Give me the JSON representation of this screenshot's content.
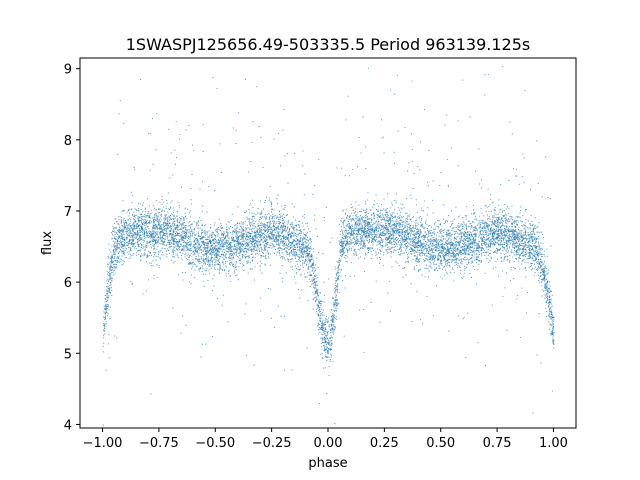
{
  "chart_data": {
    "type": "scatter",
    "title": "1SWASPJ125656.49-503335.5 Period 963139.125s",
    "xlabel": "phase",
    "ylabel": "flux",
    "xlim": [
      -1.1,
      1.1
    ],
    "ylim": [
      3.95,
      9.15
    ],
    "x_ticks": [
      -1.0,
      -0.75,
      -0.5,
      -0.25,
      0.0,
      0.25,
      0.5,
      0.75,
      1.0
    ],
    "x_tick_labels": [
      "−1.00",
      "−0.75",
      "−0.50",
      "−0.25",
      "0.00",
      "0.25",
      "0.50",
      "0.75",
      "1.00"
    ],
    "y_ticks": [
      4,
      5,
      6,
      7,
      8,
      9
    ],
    "y_tick_labels": [
      "4",
      "5",
      "6",
      "7",
      "8",
      "9"
    ],
    "grid": false,
    "legend": "none",
    "marker_color": "#1f77b4",
    "series": [
      {
        "x": [
          -1.0,
          -0.98,
          -0.95,
          -0.92,
          -0.88,
          -0.85,
          -0.8,
          -0.75,
          -0.7,
          -0.65,
          -0.6,
          -0.55,
          -0.5,
          -0.45,
          -0.4,
          -0.35,
          -0.3,
          -0.25,
          -0.2,
          -0.15,
          -0.1,
          -0.07,
          -0.05,
          -0.03,
          -0.01,
          0.0,
          0.01,
          0.03,
          0.05,
          0.07,
          0.1,
          0.15,
          0.2,
          0.25,
          0.3,
          0.35,
          0.4,
          0.45,
          0.5,
          0.55,
          0.6,
          0.65,
          0.7,
          0.75,
          0.8,
          0.85,
          0.88,
          0.92,
          0.95,
          0.98,
          1.0
        ],
        "y": [
          5.2,
          5.9,
          6.5,
          6.65,
          6.7,
          6.7,
          6.7,
          6.75,
          6.7,
          6.65,
          6.55,
          6.5,
          6.45,
          6.5,
          6.55,
          6.6,
          6.65,
          6.7,
          6.65,
          6.55,
          6.5,
          6.2,
          5.8,
          5.4,
          5.15,
          5.1,
          5.2,
          5.7,
          6.4,
          6.6,
          6.7,
          6.75,
          6.7,
          6.75,
          6.7,
          6.65,
          6.55,
          6.5,
          6.45,
          6.5,
          6.55,
          6.6,
          6.65,
          6.7,
          6.65,
          6.6,
          6.55,
          6.5,
          6.2,
          5.7,
          5.3
        ]
      }
    ]
  }
}
